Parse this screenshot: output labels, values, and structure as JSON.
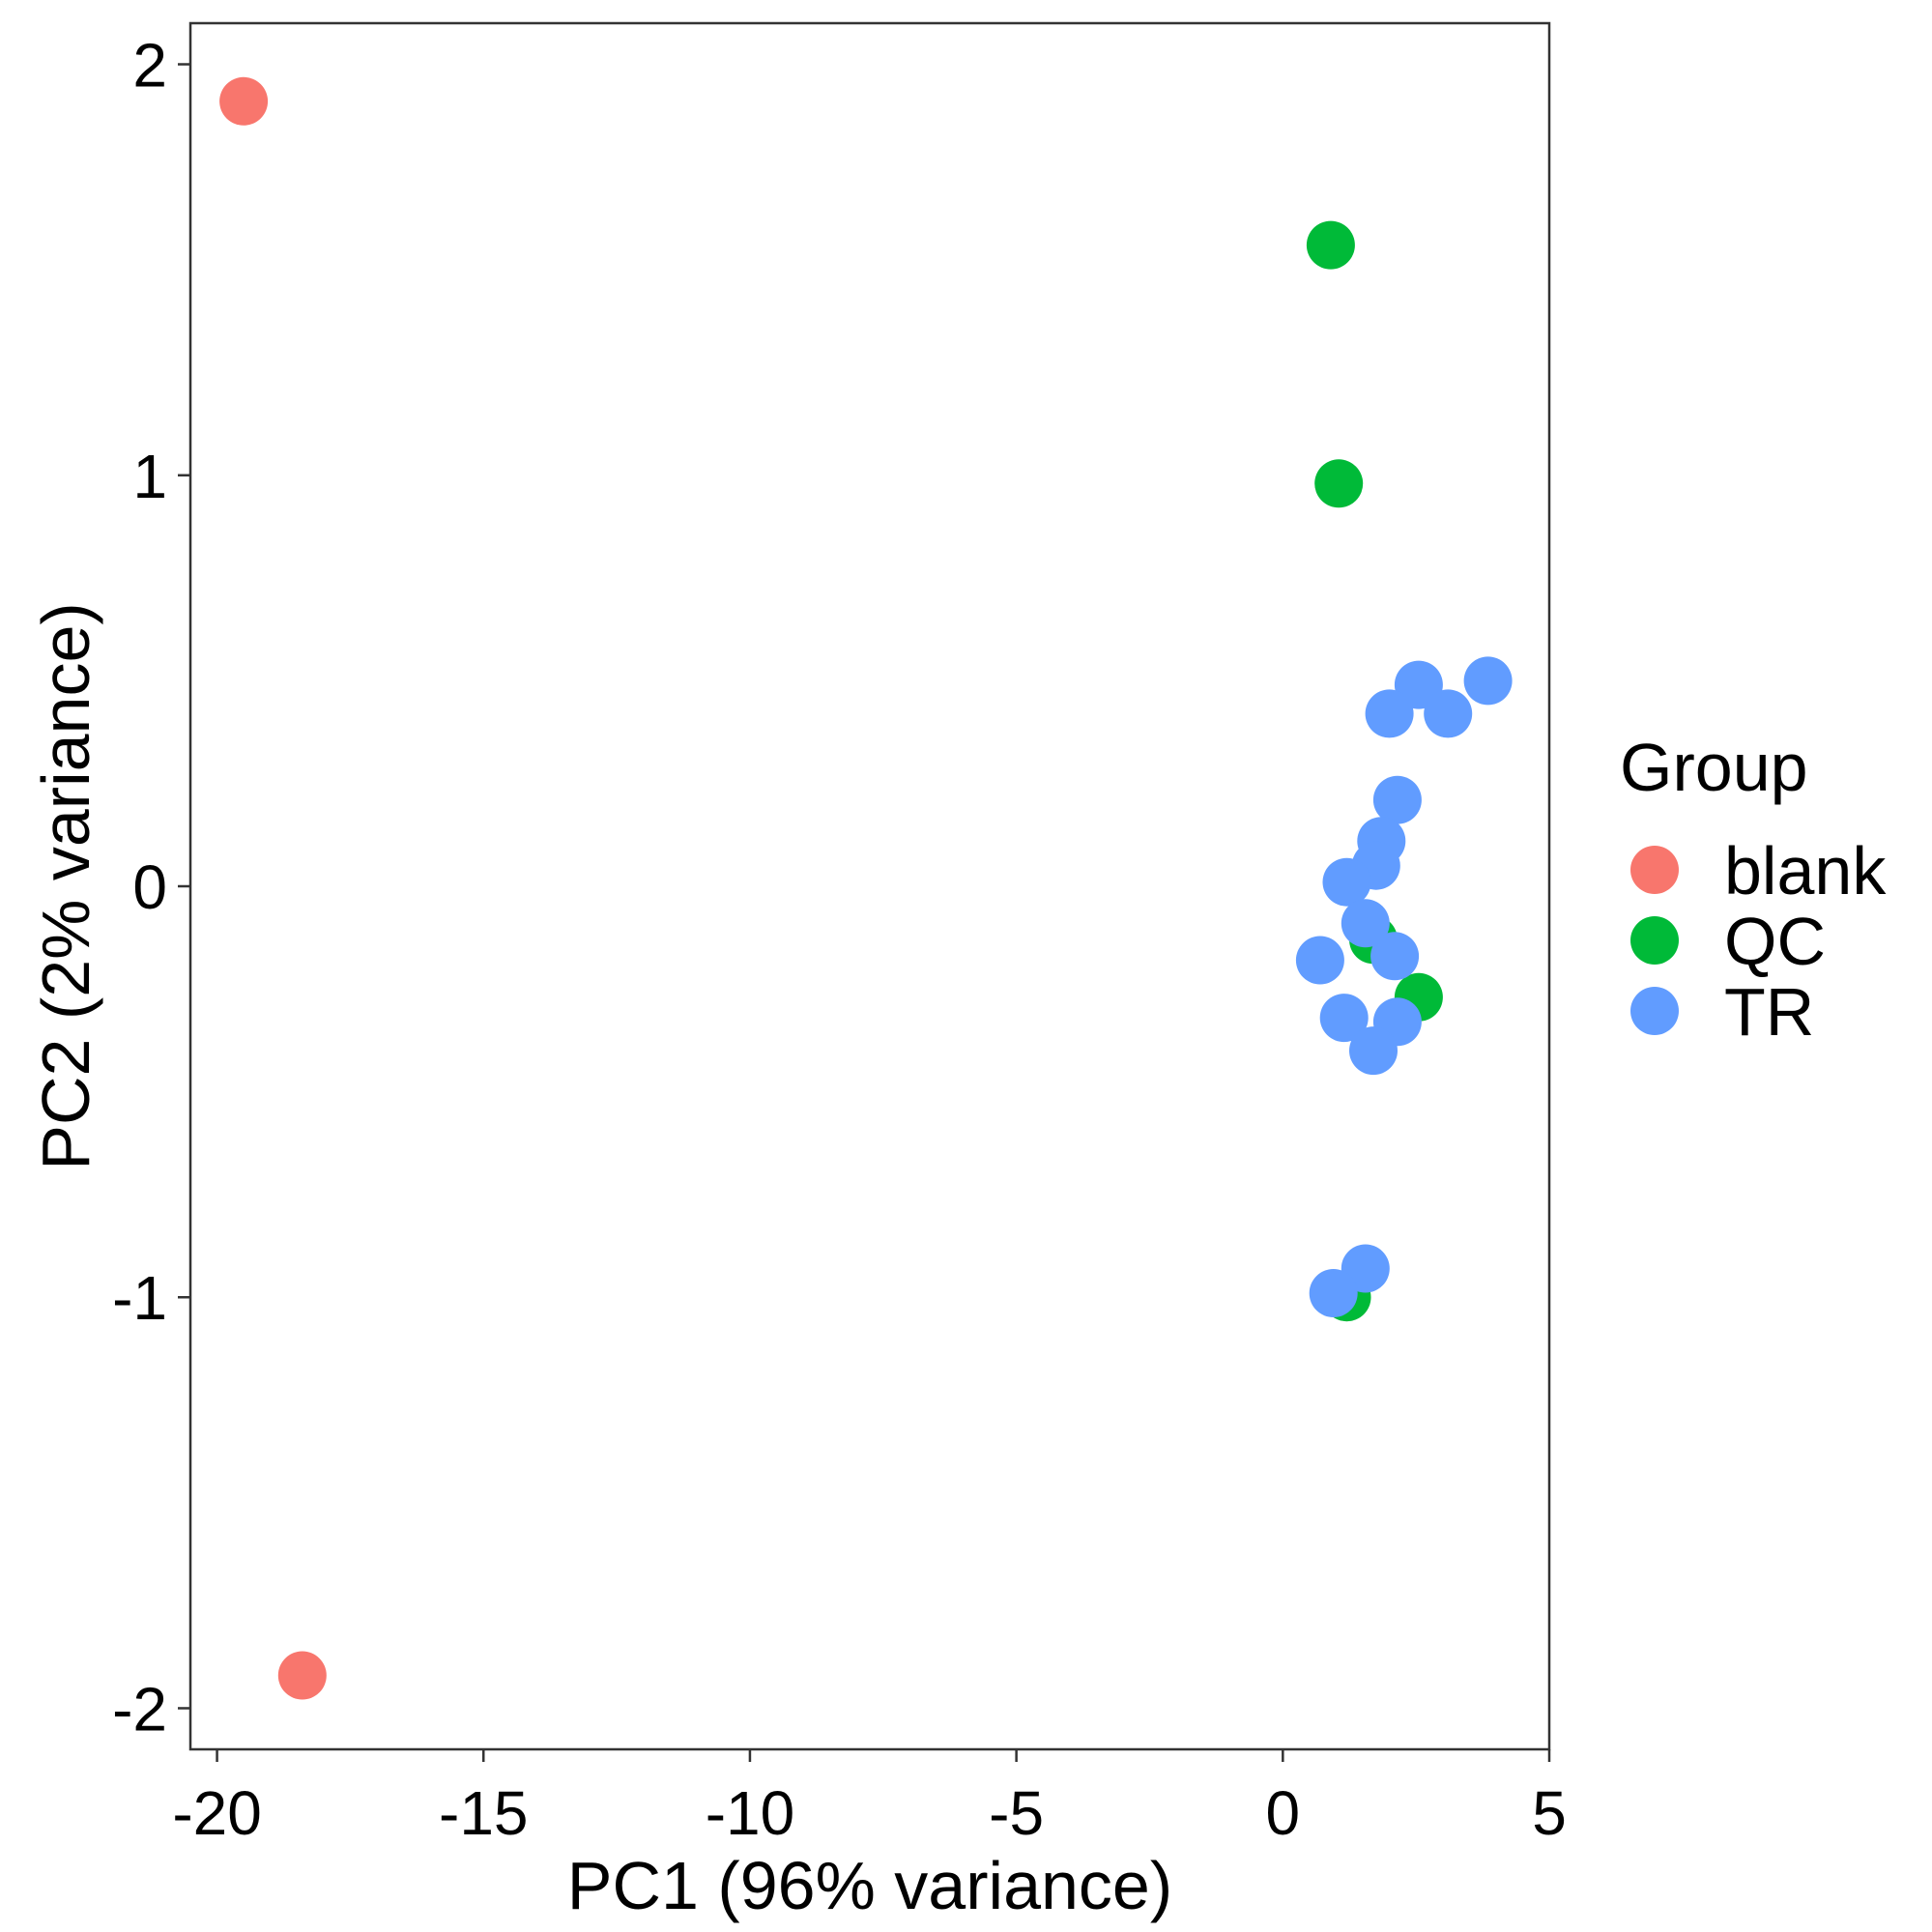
{
  "chart_data": {
    "type": "scatter",
    "title": "",
    "xlabel": "PC1 (96% variance)",
    "ylabel": "PC2 (2% variance)",
    "xlim": [
      -20.5,
      5.0
    ],
    "ylim": [
      -2.1,
      2.1
    ],
    "xticks": [
      -20,
      -15,
      -10,
      -5,
      0,
      5
    ],
    "xtick_labels": [
      "-20",
      "-15",
      "-10",
      "-5",
      "0",
      "5"
    ],
    "yticks": [
      2,
      1,
      0,
      -1,
      -2
    ],
    "ytick_labels": [
      "2",
      "1",
      "0",
      "-1",
      "-2"
    ],
    "grid": false,
    "legend": {
      "title": "Group",
      "placement": "right",
      "entries": [
        "blank",
        "QC",
        "TR"
      ]
    },
    "series": [
      {
        "name": "blank",
        "color": "#F8766D",
        "points": [
          [
            -19.5,
            1.91
          ],
          [
            -18.4,
            -1.92
          ]
        ]
      },
      {
        "name": "QC",
        "color": "#00BA38",
        "points": [
          [
            0.9,
            1.56
          ],
          [
            1.05,
            0.98
          ],
          [
            1.7,
            -0.13
          ],
          [
            2.55,
            -0.27
          ],
          [
            1.2,
            -1.0
          ]
        ]
      },
      {
        "name": "TR",
        "color": "#619CFF",
        "points": [
          [
            2.55,
            0.49
          ],
          [
            3.85,
            0.5
          ],
          [
            2.0,
            0.42
          ],
          [
            3.1,
            0.42
          ],
          [
            2.15,
            0.21
          ],
          [
            1.85,
            0.11
          ],
          [
            1.75,
            0.05
          ],
          [
            1.2,
            0.01
          ],
          [
            1.55,
            -0.09
          ],
          [
            0.7,
            -0.18
          ],
          [
            2.1,
            -0.17
          ],
          [
            1.15,
            -0.32
          ],
          [
            2.15,
            -0.33
          ],
          [
            1.7,
            -0.4
          ],
          [
            1.55,
            -0.93
          ],
          [
            0.95,
            -0.99
          ]
        ]
      }
    ]
  }
}
